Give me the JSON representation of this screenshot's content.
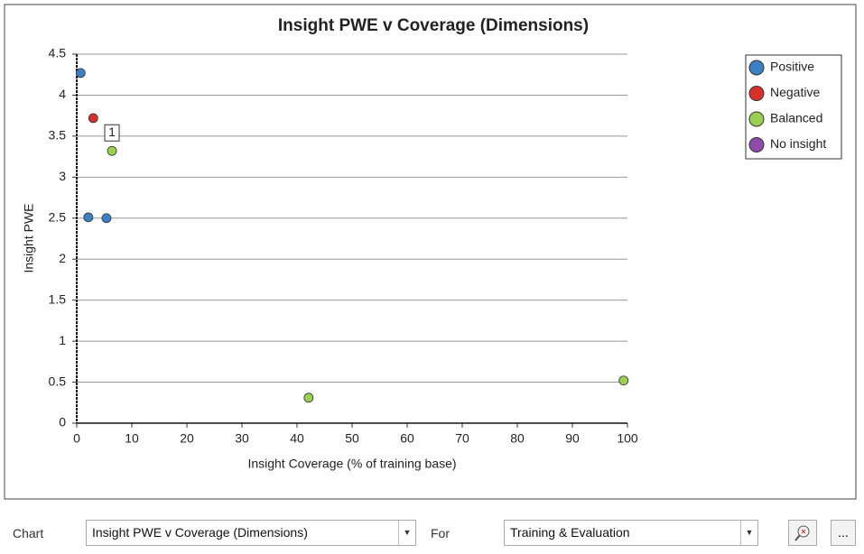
{
  "chart_data": {
    "type": "scatter",
    "title": "Insight PWE v Coverage (Dimensions)",
    "x_label": "Insight Coverage (% of training base)",
    "y_label": "Insight PWE",
    "xlim": [
      0,
      100
    ],
    "xticks": [
      0,
      10,
      20,
      30,
      40,
      50,
      60,
      70,
      80,
      90,
      100
    ],
    "ylim": [
      0,
      4.5
    ],
    "yticks": [
      0,
      0.5,
      1,
      1.5,
      2,
      2.5,
      3,
      3.5,
      4,
      4.5
    ],
    "grid": true,
    "legend": "upper right",
    "series": [
      {
        "name": "Positive",
        "color": "#3b7fc4",
        "x": [
          0.7,
          2.1,
          5.4
        ],
        "values": [
          4.27,
          2.51,
          2.5
        ]
      },
      {
        "name": "Negative",
        "color": "#d9302a",
        "x": [
          3.0
        ],
        "values": [
          3.72
        ]
      },
      {
        "name": "Balanced",
        "color": "#9bcf4f",
        "x": [
          6.4,
          42.1,
          99.3
        ],
        "values": [
          3.32,
          0.31,
          0.52
        ],
        "point_labels": [
          "1",
          null,
          null
        ]
      },
      {
        "name": "No insight",
        "color": "#8e4bab",
        "x": [],
        "values": []
      }
    ]
  },
  "controls": {
    "chart_label": "Chart",
    "chart_select": "Insight PWE v Coverage (Dimensions)",
    "for_label": "For",
    "for_select": "Training & Evaluation",
    "more_button": "..."
  }
}
